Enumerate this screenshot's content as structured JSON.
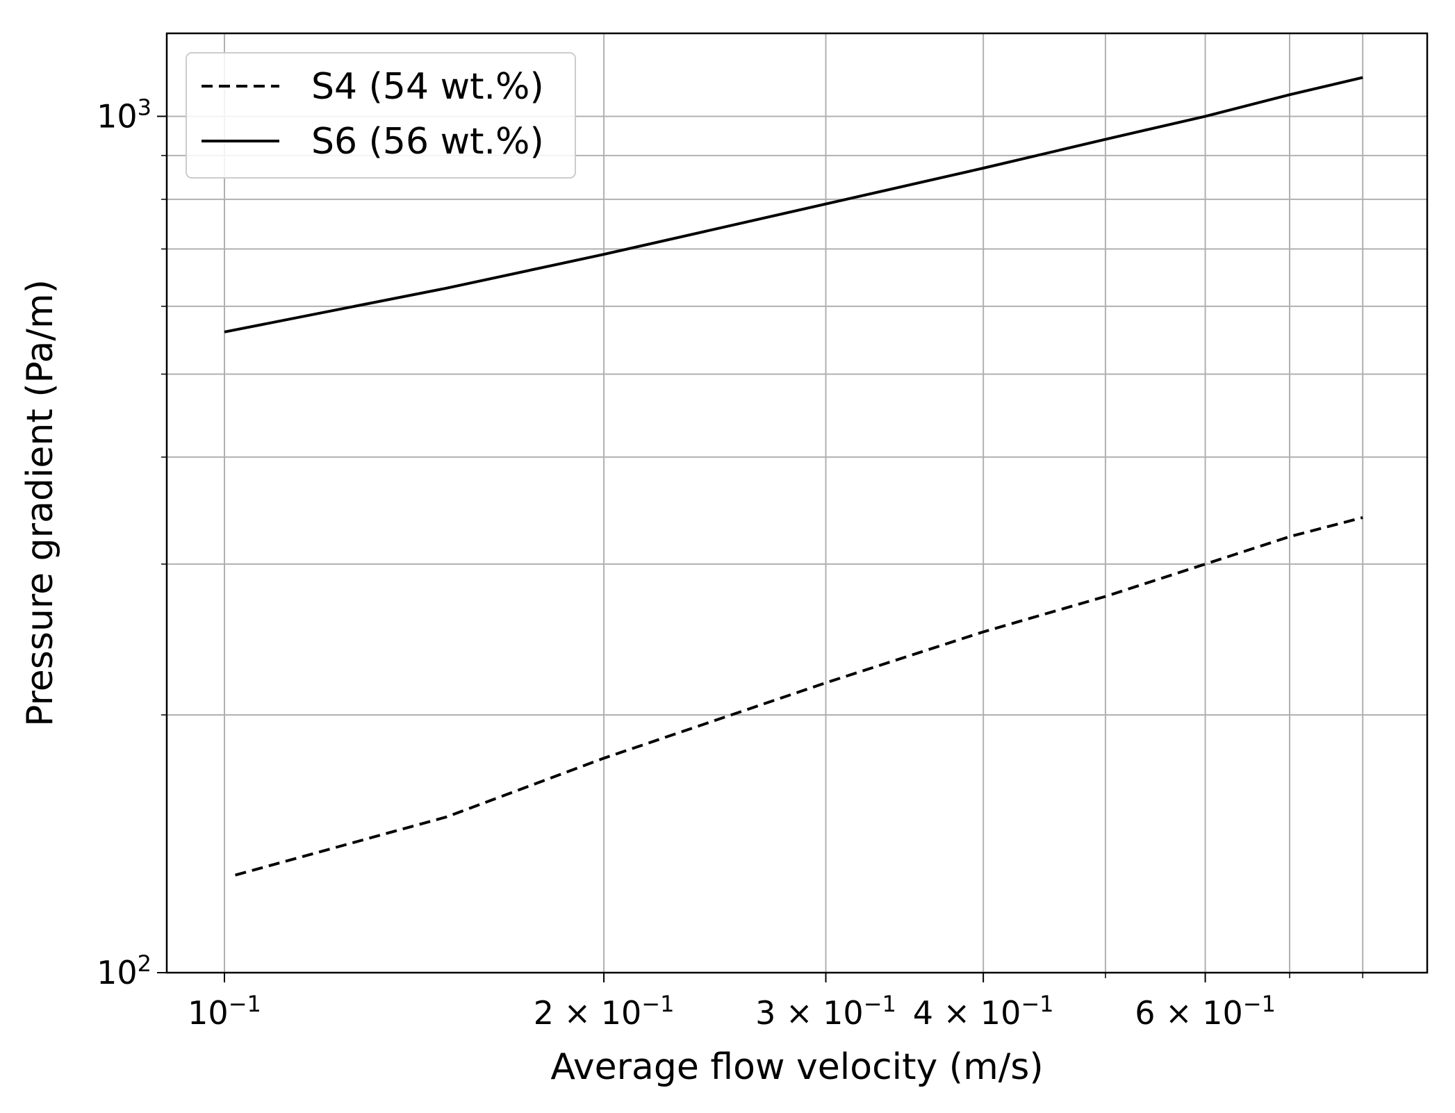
{
  "chart_data": {
    "type": "line",
    "xlabel": "Average flow velocity (m/s)",
    "ylabel": "Pressure gradient (Pa/m)",
    "x_scale": "log",
    "y_scale": "log",
    "xlim": [
      0.09,
      0.9
    ],
    "ylim": [
      100,
      1250
    ],
    "grid": true,
    "legend_position": "top-left",
    "x_ticks": [
      {
        "value": 0.1,
        "base": "10",
        "exp": "−1"
      },
      {
        "value": 0.2,
        "base": "2 × 10",
        "exp": "−1"
      },
      {
        "value": 0.3,
        "base": "3 × 10",
        "exp": "−1"
      },
      {
        "value": 0.4,
        "base": "4 × 10",
        "exp": "−1"
      },
      {
        "value": 0.6,
        "base": "6 × 10",
        "exp": "−1"
      }
    ],
    "x_minor_ticks": [
      0.5,
      0.7,
      0.8
    ],
    "y_ticks": [
      {
        "value": 100,
        "base": "10",
        "exp": "2"
      },
      {
        "value": 1000,
        "base": "10",
        "exp": "3"
      }
    ],
    "y_minor_ticks": [
      200,
      300,
      400,
      500,
      600,
      700,
      800,
      900
    ],
    "series": [
      {
        "name": "S4 (54 wt.%)",
        "style": "dashed",
        "color": "#000000",
        "x": [
          0.102,
          0.15,
          0.2,
          0.3,
          0.4,
          0.5,
          0.6,
          0.7,
          0.8
        ],
        "y": [
          130,
          152,
          178,
          218,
          250,
          275,
          300,
          323,
          340
        ]
      },
      {
        "name": "S6 (56 wt.%)",
        "style": "solid",
        "color": "#000000",
        "x": [
          0.1,
          0.15,
          0.2,
          0.3,
          0.4,
          0.5,
          0.6,
          0.7,
          0.8
        ],
        "y": [
          560,
          630,
          690,
          790,
          870,
          940,
          1000,
          1060,
          1110
        ]
      }
    ]
  }
}
